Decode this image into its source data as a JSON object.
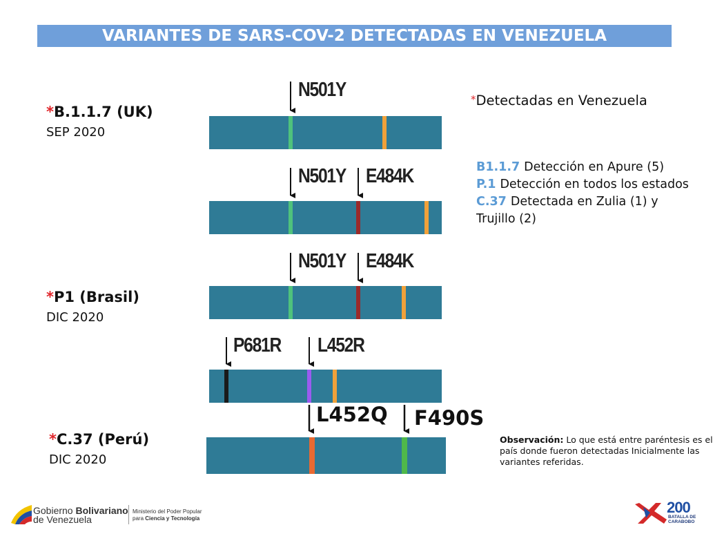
{
  "title": "VARIANTES DE SARS-COV-2 DETECTADAS EN VENEZUELA",
  "variants": [
    {
      "asterisk": "*",
      "name": "B.1.1.7 (UK)",
      "date": "SEP 2020"
    },
    {
      "asterisk": "*",
      "name": "P1 (Brasil)",
      "date": "DIC 2020"
    },
    {
      "asterisk": "*",
      "name": "C.37 (Perú)",
      "date": "DIC 2020"
    }
  ],
  "genome_labels": [
    [
      "N501Y"
    ],
    [
      "N501Y",
      "E484K"
    ],
    [
      "N501Y",
      "E484K"
    ],
    [
      "P681R",
      "L452R"
    ],
    [
      "L452Q",
      "F490S"
    ]
  ],
  "legend": {
    "asterisk": "*",
    "text": "Detectadas en Venezuela"
  },
  "details": [
    {
      "code": "B1.1.7",
      "text": "Detección en Apure (5)"
    },
    {
      "code": "P.1",
      "text": "Detección en todos los estados"
    },
    {
      "code": "C.37",
      "text": "Detectada en Zulia (1) y Trujillo (2)"
    }
  ],
  "note": {
    "label": "Observación:",
    "text": "Lo que está entre paréntesis es el país donde fueron detectadas Inicialmente las variantes referidas."
  },
  "footer": {
    "gov": "Gobierno",
    "gov_bold": "Bolivariano",
    "gov_line2": "de Venezuela",
    "ministry": "Ministerio del Poder Popular",
    "ministry_pre": "para",
    "ministry_bold": "Ciencia y Tecnología",
    "logo_number": "200",
    "logo_line1": "BATALLA DE",
    "logo_line2": "CARABOBO"
  }
}
